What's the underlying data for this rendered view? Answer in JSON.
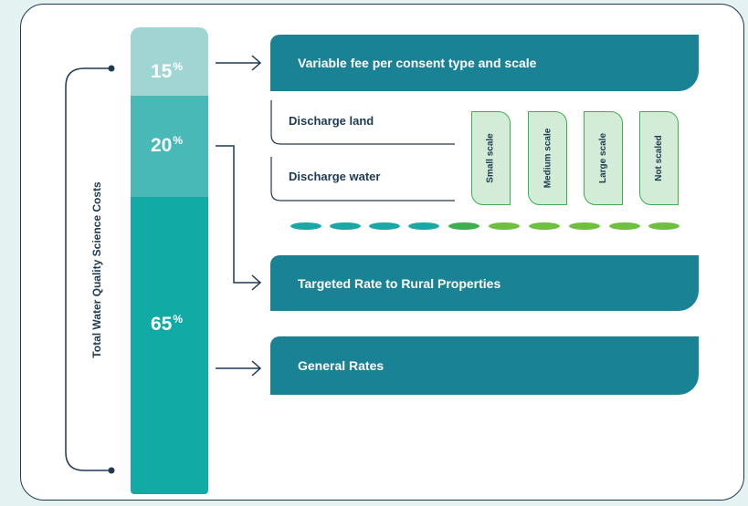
{
  "axis_label": "Total Water Quality Science Costs",
  "segments": [
    {
      "value": "15",
      "unit": "%"
    },
    {
      "value": "20",
      "unit": "%"
    },
    {
      "value": "65",
      "unit": "%"
    }
  ],
  "boxes": {
    "variable_fee": "Variable fee per consent type and scale",
    "targeted_rate": "Targeted Rate to Rural Properties",
    "general_rates": "General Rates"
  },
  "consents": [
    "Discharge land",
    "Discharge water"
  ],
  "scales": [
    "Small scale",
    "Medium scale",
    "Large scale",
    "Not scaled"
  ],
  "colors": {
    "navy": "#1d3a52",
    "teal_box": "#1a8295",
    "seg_light": "#a1d5d4",
    "seg_mid": "#48b9b6",
    "seg_dark": "#11aaa5",
    "green": "#3fae4f",
    "green_fill": "#d3ecd7"
  }
}
